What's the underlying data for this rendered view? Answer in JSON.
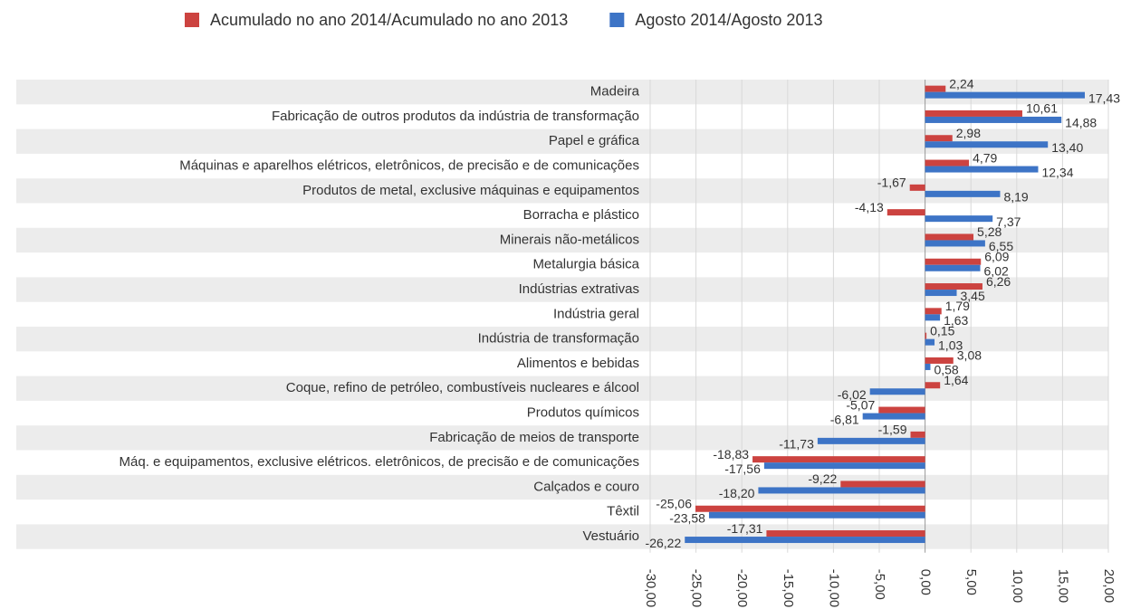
{
  "chart_data": {
    "type": "hbar",
    "categories": [
      "Madeira",
      "Fabricação de outros produtos da indústria de transformação",
      "Papel e gráfica",
      "Máquinas e aparelhos elétricos, eletrônicos, de precisão e de comunicações",
      "Produtos de metal, exclusive máquinas e equipamentos",
      "Borracha e plástico",
      "Minerais não-metálicos",
      "Metalurgia básica",
      "Indústrias extrativas",
      "Indústria geral",
      "Indústria de transformação",
      "Alimentos e bebidas",
      "Coque, refino de petróleo, combustíveis nucleares e álcool",
      "Produtos químicos",
      "Fabricação de meios de transporte",
      "Máq. e equipamentos, exclusive elétricos. eletrônicos, de precisão e de comunicações",
      "Calçados e couro",
      "Têxtil",
      "Vestuário"
    ],
    "series": [
      {
        "name": "Acumulado no ano 2014/Acumulado no ano 2013",
        "color": "#cc4340",
        "values": [
          2.24,
          10.61,
          2.98,
          4.79,
          -1.67,
          -4.13,
          5.28,
          6.09,
          6.26,
          1.79,
          0.15,
          3.08,
          1.64,
          -5.07,
          -1.59,
          -18.83,
          -9.22,
          -25.06,
          -17.31
        ],
        "value_labels": [
          "2,24",
          "10,61",
          "2,98",
          "4,79",
          "-1,67",
          "-4,13",
          "5,28",
          "6,09",
          "6,26",
          "1,79",
          "0,15",
          "3,08",
          "1,64",
          "-5,07",
          "-1,59",
          "-18,83",
          "-9,22",
          "-25,06",
          "-17,31"
        ]
      },
      {
        "name": "Agosto 2014/Agosto 2013",
        "color": "#3d74c6",
        "values": [
          17.43,
          14.88,
          13.4,
          12.34,
          8.19,
          7.37,
          6.55,
          6.02,
          3.45,
          1.63,
          1.03,
          0.58,
          -6.02,
          -6.81,
          -11.73,
          -17.56,
          -18.2,
          -23.58,
          -26.22
        ],
        "value_labels": [
          "17,43",
          "14,88",
          "13,40",
          "12,34",
          "8,19",
          "7,37",
          "6,55",
          "6,02",
          "3,45",
          "1,63",
          "1,03",
          "0,58",
          "-6,02",
          "-6,81",
          "-11,73",
          "-17,56",
          "-18,20",
          "-23,58",
          "-26,22"
        ]
      }
    ],
    "xlim": [
      -30,
      20
    ],
    "xticks": [
      {
        "value": -30,
        "label": "-30,00"
      },
      {
        "value": -25,
        "label": "-25,00"
      },
      {
        "value": -20,
        "label": "-20,00"
      },
      {
        "value": -15,
        "label": "-15,00"
      },
      {
        "value": -10,
        "label": "-10,00"
      },
      {
        "value": -5,
        "label": "-5,00"
      },
      {
        "value": 0,
        "label": "0,00"
      },
      {
        "value": 5,
        "label": "5,00"
      },
      {
        "value": 10,
        "label": "10,00"
      },
      {
        "value": 15,
        "label": "15,00"
      },
      {
        "value": 20,
        "label": "20,00"
      }
    ],
    "grid": true,
    "legend": "top"
  }
}
